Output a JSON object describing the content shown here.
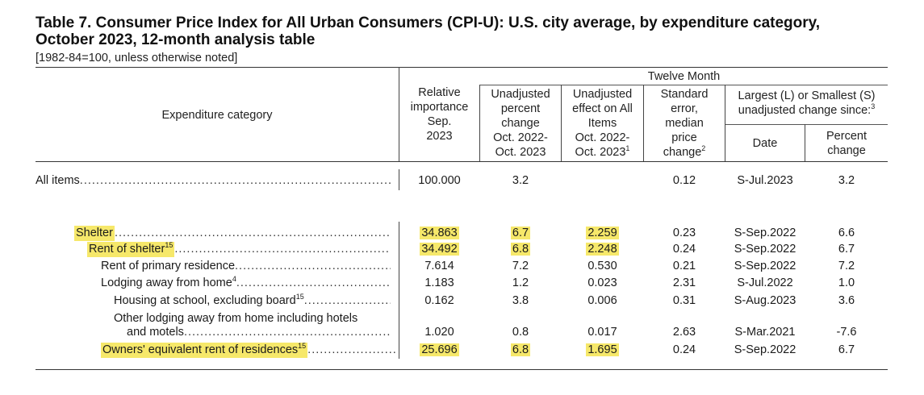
{
  "title": {
    "line1": "Table 7. Consumer Price Index for All Urban Consumers (CPI-U): U.S. city average, by expenditure category,",
    "line2": "October 2023, 12-month analysis table"
  },
  "note": "[1982-84=100, unless otherwise noted]",
  "headers": {
    "twelve_month": "Twelve Month",
    "category": "Expenditure category",
    "relative_importance": [
      "Relative",
      "importance",
      "Sep.",
      "2023"
    ],
    "unadj_pct": [
      "Unadjusted",
      "percent",
      "change",
      "Oct. 2022-",
      "Oct. 2023"
    ],
    "unadj_effect": [
      "Unadjusted",
      "effect on All",
      "Items",
      "Oct. 2022-",
      "Oct. 2023"
    ],
    "unadj_effect_sup": "1",
    "std_error": [
      "Standard",
      "error,",
      "median",
      "price",
      "change"
    ],
    "std_error_sup": "2",
    "largest_smallest": [
      "Largest (L) or Smallest (S)",
      "unadjusted change since:"
    ],
    "largest_smallest_sup": "3",
    "date": "Date",
    "pct_change": [
      "Percent",
      "change"
    ]
  },
  "rows": [
    {
      "label": "All items",
      "sup": "",
      "rel": "100.000",
      "pct": "3.2",
      "effect": "",
      "se": "0.12",
      "date": "S-Jul.2023",
      "pchg": "3.2"
    },
    {
      "label": "Shelter",
      "sup": "",
      "rel": "34.863",
      "pct": "6.7",
      "effect": "2.259",
      "se": "0.23",
      "date": "S-Sep.2022",
      "pchg": "6.6"
    },
    {
      "label": "Rent of shelter",
      "sup": "15",
      "rel": "34.492",
      "pct": "6.8",
      "effect": "2.248",
      "se": "0.24",
      "date": "S-Sep.2022",
      "pchg": "6.7"
    },
    {
      "label": "Rent of primary residence",
      "sup": "",
      "rel": "7.614",
      "pct": "7.2",
      "effect": "0.530",
      "se": "0.21",
      "date": "S-Sep.2022",
      "pchg": "7.2"
    },
    {
      "label": "Lodging away from home",
      "sup": "4",
      "rel": "1.183",
      "pct": "1.2",
      "effect": "0.023",
      "se": "2.31",
      "date": "S-Jul.2022",
      "pchg": "1.0"
    },
    {
      "label": "Housing at school, excluding board",
      "sup": "15",
      "rel": "0.162",
      "pct": "3.8",
      "effect": "0.006",
      "se": "0.31",
      "date": "S-Aug.2023",
      "pchg": "3.6"
    },
    {
      "label_line1": "Other lodging away from home including hotels",
      "label_line2": "and motels",
      "rel": "1.020",
      "pct": "0.8",
      "effect": "0.017",
      "se": "2.63",
      "date": "S-Mar.2021",
      "pchg": "-7.6"
    },
    {
      "label": "Owners' equivalent rent of residences",
      "sup": "15",
      "rel": "25.696",
      "pct": "6.8",
      "effect": "1.695",
      "se": "0.24",
      "date": "S-Sep.2022",
      "pchg": "6.7"
    }
  ],
  "highlight_color": "#f6e86a"
}
